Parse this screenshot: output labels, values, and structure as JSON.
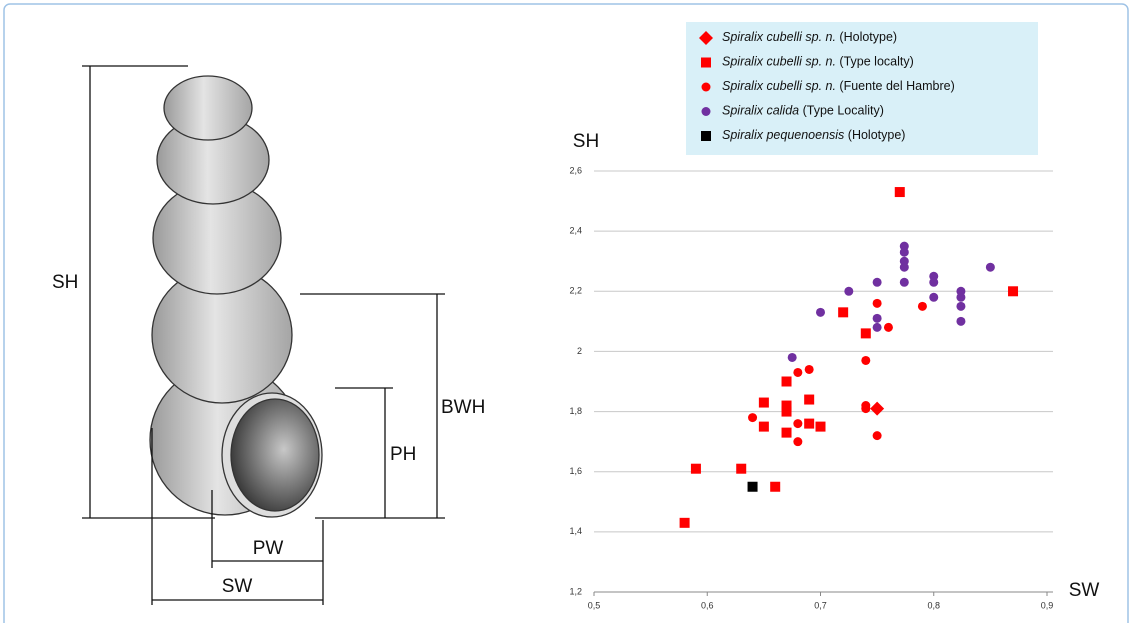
{
  "diagram": {
    "labels": {
      "sh": "SH",
      "bwh": "BWH",
      "ph": "PH",
      "pw": "PW",
      "sw": "SW"
    }
  },
  "chart_data": {
    "type": "scatter",
    "x_label": "SW",
    "y_label": "SH",
    "xlim": [
      0.5,
      0.9
    ],
    "ylim": [
      1.2,
      2.6
    ],
    "xticks": [
      {
        "value": 0.5,
        "label": "0,5"
      },
      {
        "value": 0.6,
        "label": "0,6"
      },
      {
        "value": 0.7,
        "label": "0,7"
      },
      {
        "value": 0.8,
        "label": "0,8"
      },
      {
        "value": 0.9,
        "label": "0,9"
      }
    ],
    "yticks": [
      {
        "value": 1.2,
        "label": "1,2"
      },
      {
        "value": 1.4,
        "label": "1,4"
      },
      {
        "value": 1.6,
        "label": "1,6"
      },
      {
        "value": 1.8,
        "label": "1,8"
      },
      2,
      {
        "value": 2.2,
        "label": "2,2"
      },
      {
        "value": 2.4,
        "label": "2,4"
      },
      {
        "value": 2.6,
        "label": "2,6"
      }
    ],
    "grid": true,
    "series": [
      {
        "name": "Spiralix cubelli sp. n. (Holotype)",
        "color": "#ff0000",
        "marker": "diamond",
        "x": [
          0.75
        ],
        "values": [
          1.81
        ]
      },
      {
        "name": "Spiralix cubelli sp. n. (Type localty)",
        "color": "#ff0000",
        "marker": "square",
        "x": [
          0.77,
          0.87,
          0.72,
          0.74,
          0.67,
          0.69,
          0.65,
          0.67,
          0.67,
          0.7,
          0.69,
          0.65,
          0.67,
          0.59,
          0.63,
          0.66,
          0.58
        ],
        "values": [
          2.53,
          2.2,
          2.13,
          2.06,
          1.9,
          1.84,
          1.83,
          1.82,
          1.8,
          1.75,
          1.76,
          1.75,
          1.73,
          1.61,
          1.61,
          1.55,
          1.43
        ]
      },
      {
        "name": "Spiralix cubelli sp. n. (Fuente del Hambre)",
        "color": "#ff0000",
        "marker": "circle",
        "x": [
          0.75,
          0.76,
          0.79,
          0.74,
          0.68,
          0.69,
          0.67,
          0.74,
          0.64,
          0.68,
          0.68,
          0.75,
          0.74
        ],
        "values": [
          2.16,
          2.08,
          2.15,
          1.97,
          1.93,
          1.94,
          1.82,
          1.82,
          1.78,
          1.76,
          1.7,
          1.72,
          1.81
        ]
      },
      {
        "name": "Spiralix calida (Type Locality)",
        "color": "#7030a0",
        "marker": "circle",
        "x": [
          0.675,
          0.7,
          0.725,
          0.75,
          0.75,
          0.75,
          0.774,
          0.774,
          0.774,
          0.774,
          0.774,
          0.8,
          0.8,
          0.8,
          0.824,
          0.824,
          0.824,
          0.824,
          0.85
        ],
        "values": [
          1.98,
          2.13,
          2.2,
          2.23,
          2.11,
          2.08,
          2.35,
          2.33,
          2.3,
          2.28,
          2.23,
          2.25,
          2.23,
          2.18,
          2.2,
          2.18,
          2.15,
          2.1,
          2.28
        ]
      },
      {
        "name": "Spiralix pequenoensis (Holotype)",
        "color": "#000000",
        "marker": "square",
        "x": [
          0.64
        ],
        "values": [
          1.55
        ]
      }
    ]
  }
}
